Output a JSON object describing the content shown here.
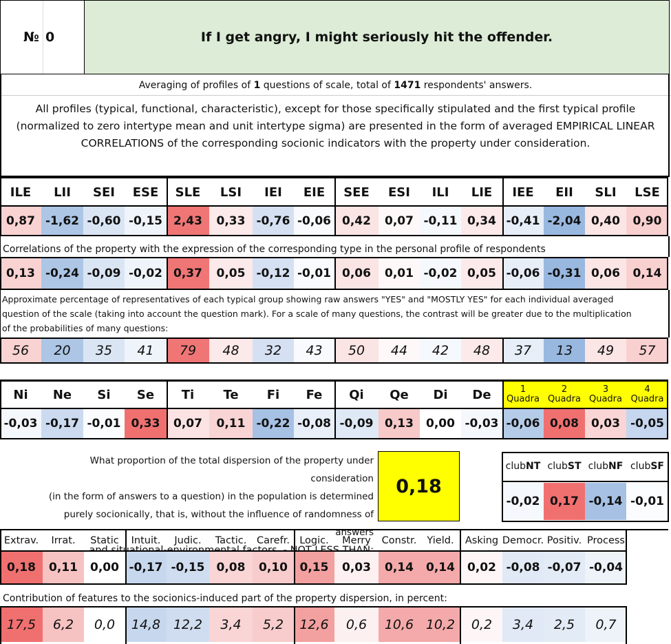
{
  "header": {
    "number_label": "№",
    "number_value": "0",
    "title": "If I get angry, I might seriously hit the offender."
  },
  "averaging": {
    "prefix": "Averaging of profiles of",
    "questions": "1",
    "middle": "questions of scale, total of",
    "respondents": "1471",
    "suffix": "respondents' answers."
  },
  "note": "All profiles (typical, functional, characteristic), except for those specifically stipulated and the first typical profile (normalized to zero intertype mean and unit intertype sigma) are presented in the form of averaged EMPIRICAL LINEAR CORRELATIONS of the corresponding socionic indicators with the property under consideration.",
  "types": {
    "labels": [
      "ILE",
      "LII",
      "SEI",
      "ESE",
      "SLE",
      "LSI",
      "IEI",
      "EIE",
      "SEE",
      "ESI",
      "ILI",
      "LIE",
      "IEE",
      "EII",
      "SLI",
      "LSE"
    ],
    "profile": [
      "0,87",
      "-1,62",
      "-0,60",
      "-0,15",
      "2,43",
      "0,33",
      "-0,76",
      "-0,06",
      "0,42",
      "0,07",
      "-0,11",
      "0,34",
      "-0,41",
      "-2,04",
      "0,40",
      "0,90"
    ],
    "profile_colors": [
      "#f9d2d2",
      "#adc6e6",
      "#dae5f4",
      "#eff4fa",
      "#f07676",
      "#fce9e9",
      "#d5e1f2",
      "#f8fafd",
      "#fbe4e4",
      "#fef8f8",
      "#f5f8fc",
      "#fce9e9",
      "#e7eef8",
      "#99b8e0",
      "#fbe5e5",
      "#f9d0d0"
    ],
    "caption_corr": "Correlations of the property with the expression of the corresponding type in the personal profile of respondents",
    "corr": [
      "0,13",
      "-0,24",
      "-0,09",
      "-0,02",
      "0,37",
      "0,05",
      "-0,12",
      "-0,01",
      "0,06",
      "0,01",
      "-0,02",
      "0,05",
      "-0,06",
      "-0,31",
      "0,06",
      "0,14"
    ],
    "corr_colors": [
      "#f9d2d2",
      "#adc6e6",
      "#dae5f4",
      "#eff4fa",
      "#f07676",
      "#fce9e9",
      "#d5e1f2",
      "#f8fafd",
      "#fbe4e4",
      "#fef8f8",
      "#f5f8fc",
      "#fce9e9",
      "#e7eef8",
      "#99b8e0",
      "#fbe5e5",
      "#f9d0d0"
    ],
    "caption_pct": "Approximate percentage of representatives of each typical group showing raw answers \"YES\" and \"MOSTLY YES\" for each individual averaged question of the scale (taking into account the question mark). For a scale of many questions, the contrast will be greater due to the multiplication of the probabilities of many questions:",
    "pct": [
      "56",
      "20",
      "35",
      "41",
      "79",
      "48",
      "32",
      "43",
      "50",
      "44",
      "42",
      "48",
      "37",
      "13",
      "49",
      "57"
    ],
    "pct_colors": [
      "#f9d2d2",
      "#adc6e6",
      "#dae5f4",
      "#eff4fa",
      "#f07676",
      "#fce9e9",
      "#d5e1f2",
      "#f8fafd",
      "#fbe4e4",
      "#fef8f8",
      "#f5f8fc",
      "#fce9e9",
      "#e7eef8",
      "#99b8e0",
      "#fbe5e5",
      "#f9d0d0"
    ]
  },
  "functions": {
    "labels": [
      "Ni",
      "Ne",
      "Si",
      "Se",
      "Ti",
      "Te",
      "Fi",
      "Fe",
      "Qi",
      "Qe",
      "Di",
      "De"
    ],
    "values": [
      "-0,03",
      "-0,17",
      "-0,01",
      "0,33",
      "0,07",
      "0,11",
      "-0,22",
      "-0,08",
      "-0,09",
      "0,13",
      "0,00",
      "-0,03"
    ],
    "colors": [
      "#f4f7fc",
      "#cbdaef",
      "#fafcfe",
      "#f07070",
      "#fbe3e3",
      "#f9d4d4",
      "#a6c1e4",
      "#e8eff8",
      "#dfe8f5",
      "#f7c9c9",
      "#ffffff",
      "#f4f7fc"
    ]
  },
  "quadras": {
    "numbers": [
      "1",
      "2",
      "3",
      "4"
    ],
    "word": "Quadra",
    "values": [
      "-0,06",
      "0,08",
      "0,03",
      "-0,05"
    ],
    "colors": [
      "#b5cce8",
      "#f07070",
      "#f9d5d5",
      "#c5d6ee"
    ]
  },
  "dispersion": {
    "lines": [
      "What proportion of the total dispersion of the property under consideration",
      "(in the form of answers to a question) in the population is determined",
      "purely socionically, that is, without the influence of randomness of answers",
      "and situational-environmental factors. - NOT LESS THAN:"
    ],
    "value": "0,18"
  },
  "clubs": {
    "prefix": "club",
    "names": [
      "NT",
      "ST",
      "NF",
      "SF"
    ],
    "values": [
      "-0,02",
      "0,17",
      "-0,14",
      "-0,01"
    ],
    "colors": [
      "#f5f8fc",
      "#f07070",
      "#a6c1e4",
      "#fbfcfe"
    ]
  },
  "features": {
    "labels": [
      "Extrav.",
      "Irrat.",
      "Static",
      "Intuit.",
      "Judic.",
      "Tactic.",
      "Carefr.",
      "Logic.",
      "Merry",
      "Constr.",
      "Yield.",
      "Asking",
      "Democr.",
      "Positiv.",
      "Process"
    ],
    "values": [
      "0,18",
      "0,11",
      "0,00",
      "-0,17",
      "-0,15",
      "0,08",
      "0,10",
      "0,15",
      "0,03",
      "0,14",
      "0,14",
      "0,02",
      "-0,08",
      "-0,07",
      "-0,04"
    ],
    "colors": [
      "#f07070",
      "#f7c2c2",
      "#ffffff",
      "#c7d8ee",
      "#d0ddf0",
      "#f9d5d5",
      "#f8cccc",
      "#f3a0a0",
      "#fdf0f0",
      "#f4aaaa",
      "#f4aaaa",
      "#fef6f6",
      "#e0e9f5",
      "#e3ebf6",
      "#eef3fa"
    ],
    "caption": "Contribution of features to the socionics-induced part of the property dispersion, in percent:",
    "contrib": [
      "17,5",
      "6,2",
      "0,0",
      "14,8",
      "12,2",
      "3,4",
      "5,2",
      "12,6",
      "0,6",
      "10,6",
      "10,2",
      "0,2",
      "3,4",
      "2,5",
      "0,7"
    ]
  }
}
